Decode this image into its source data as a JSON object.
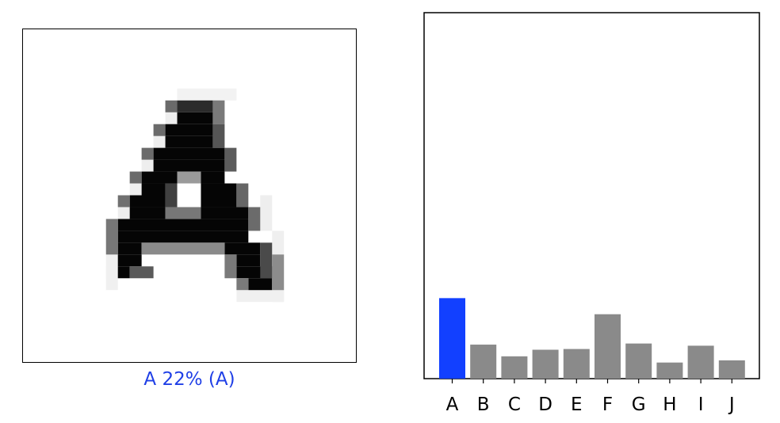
{
  "caption": {
    "text": "A 22% (A)"
  },
  "colors": {
    "highlight": "#1240ff",
    "bar": "#8a8a8a",
    "caption": "#1f3fe6"
  },
  "chart_data": {
    "type": "bar",
    "categories": [
      "A",
      "B",
      "C",
      "D",
      "E",
      "F",
      "G",
      "H",
      "I",
      "J"
    ],
    "values": [
      0.22,
      0.093,
      0.061,
      0.079,
      0.081,
      0.176,
      0.096,
      0.044,
      0.09,
      0.05
    ],
    "highlight_index": 0,
    "ylim": [
      0,
      1
    ],
    "xlabel": "",
    "ylabel": "",
    "title": "",
    "grid": false
  }
}
